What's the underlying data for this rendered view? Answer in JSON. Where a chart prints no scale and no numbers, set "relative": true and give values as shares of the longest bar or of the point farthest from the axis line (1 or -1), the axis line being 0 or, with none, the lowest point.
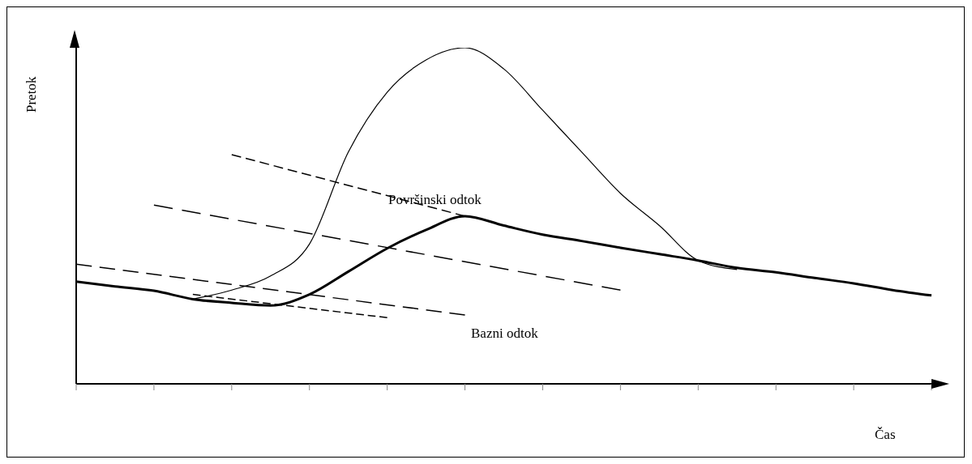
{
  "chart_data": {
    "type": "line",
    "relative": true,
    "xlabel": "Čas",
    "ylabel": "Pretok",
    "marker": "none",
    "categories": [
      null,
      null,
      null,
      null,
      null,
      null,
      null,
      null,
      null,
      null,
      null,
      null,
      null,
      null,
      null,
      null,
      null,
      null,
      null,
      null,
      null,
      null,
      null
    ],
    "series": [
      {
        "color": "#000000",
        "line_style": "solid",
        "values": [
          null,
          null,
          null,
          0.252,
          0.279,
          0.321,
          0.416,
          0.69,
          0.868,
          0.964,
          1,
          0.937,
          0.814,
          0.69,
          0.567,
          0.471,
          0.367,
          0.34,
          null,
          null,
          null,
          null,
          null
        ]
      },
      {
        "color": "#000000",
        "line_style": "solid",
        "values": [
          0.304,
          0.29,
          0.277,
          0.252,
          0.241,
          0.233,
          0.266,
          0.334,
          0.403,
          0.458,
          0.499,
          0.471,
          0.444,
          0.425,
          0.405,
          0.386,
          0.367,
          0.345,
          0.332,
          0.315,
          0.299,
          0.279,
          0.263
        ]
      },
      {
        "color": "#000000",
        "line_style": "dashed",
        "values": [
          0.356,
          null,
          null,
          null,
          null,
          null,
          null,
          null,
          null,
          null,
          0.205,
          null,
          null,
          null,
          null,
          null,
          null,
          null,
          null,
          null,
          null,
          null,
          null
        ]
      },
      {
        "color": "#000000",
        "line_style": "dashed",
        "values": [
          null,
          null,
          null,
          0.266,
          null,
          null,
          null,
          null,
          0.197,
          null,
          null,
          null,
          null,
          null,
          null,
          null,
          null,
          null,
          null,
          null,
          null,
          null,
          null
        ]
      },
      {
        "color": "#000000",
        "line_style": "dashed",
        "values": [
          null,
          null,
          0.532,
          null,
          null,
          null,
          null,
          null,
          null,
          null,
          null,
          null,
          null,
          null,
          0.279,
          null,
          null,
          null,
          null,
          null,
          null,
          null,
          null
        ]
      },
      {
        "color": "#000000",
        "line_style": "dashed",
        "values": [
          null,
          null,
          null,
          null,
          0.682,
          null,
          null,
          null,
          null,
          null,
          0.499,
          null,
          null,
          null,
          null,
          null,
          null,
          null,
          null,
          null,
          null,
          null,
          null
        ]
      }
    ],
    "annotations": [
      "Površinski odtok",
      "Bazni odtok"
    ]
  }
}
